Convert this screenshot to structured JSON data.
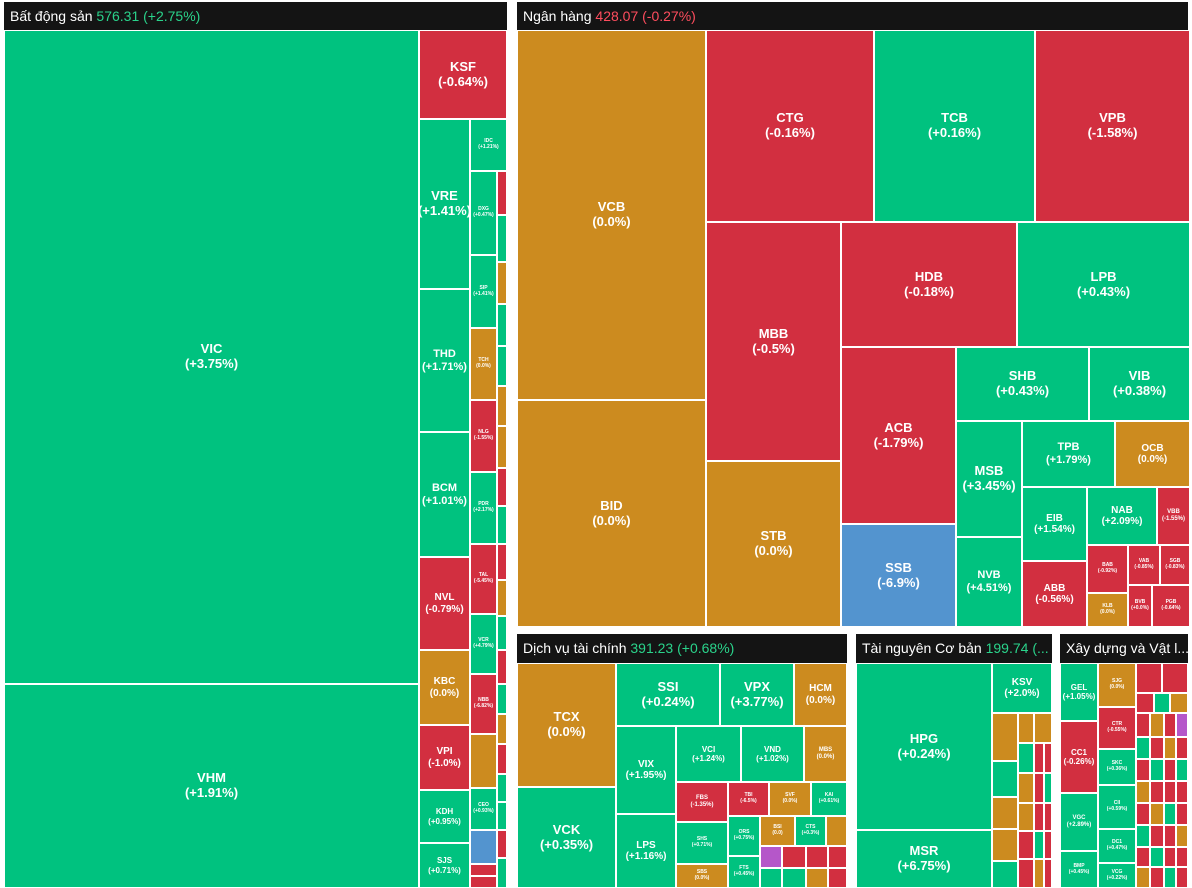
{
  "sectors": {
    "real_estate": {
      "name": "Bất động sản",
      "value": "576.31",
      "change": "(+2.75%)"
    },
    "banking": {
      "name": "Ngân hàng",
      "value": "428.07",
      "change": "(-0.27%)"
    },
    "financial_services": {
      "name": "Dịch vụ tài chính",
      "value": "391.23",
      "change": "(+0.68%)"
    },
    "basic_resources": {
      "name": "Tài nguyên Cơ bản",
      "value": "199.74",
      "change": "(..."
    },
    "construction": {
      "name": "Xây dựng và Vật l..."
    }
  },
  "tiles": {
    "VIC": {
      "ticker": "VIC",
      "change": "(+3.75%)"
    },
    "VHM": {
      "ticker": "VHM",
      "change": "(+1.91%)"
    },
    "KSF": {
      "ticker": "KSF",
      "change": "(-0.64%)"
    },
    "VRE": {
      "ticker": "VRE",
      "change": "(+1.41%)"
    },
    "THD": {
      "ticker": "THD",
      "change": "(+1.71%)"
    },
    "BCM": {
      "ticker": "BCM",
      "change": "(+1.01%)"
    },
    "NVL": {
      "ticker": "NVL",
      "change": "(-0.79%)"
    },
    "KBC": {
      "ticker": "KBC",
      "change": "(0.0%)"
    },
    "VPI": {
      "ticker": "VPI",
      "change": "(-1.0%)"
    },
    "KDH": {
      "ticker": "KDH",
      "change": "(+0.95%)"
    },
    "SJS": {
      "ticker": "SJS",
      "change": "(+0.71%)"
    },
    "IDC": {
      "ticker": "IDC",
      "change": "(+1.21%)"
    },
    "DXG": {
      "ticker": "DXG",
      "change": "(+0.47%)"
    },
    "SIP": {
      "ticker": "SIP",
      "change": "(+1.41%)"
    },
    "TCH": {
      "ticker": "TCH",
      "change": "(0.0%)"
    },
    "NLG": {
      "ticker": "NLG",
      "change": "(-1.55%)"
    },
    "PDR": {
      "ticker": "PDR",
      "change": "(+2.17%)"
    },
    "TAL": {
      "ticker": "TAL",
      "change": "(-5.45%)"
    },
    "VCR": {
      "ticker": "VCR",
      "change": "(+4.79%)"
    },
    "NBB": {
      "ticker": "NBB",
      "change": "(-6.82%)"
    },
    "CEO": {
      "ticker": "CEO",
      "change": "(+0.93%)"
    },
    "VCB": {
      "ticker": "VCB",
      "change": "(0.0%)"
    },
    "BID": {
      "ticker": "BID",
      "change": "(0.0%)"
    },
    "CTG": {
      "ticker": "CTG",
      "change": "(-0.16%)"
    },
    "TCB": {
      "ticker": "TCB",
      "change": "(+0.16%)"
    },
    "VPB": {
      "ticker": "VPB",
      "change": "(-1.58%)"
    },
    "MBB": {
      "ticker": "MBB",
      "change": "(-0.5%)"
    },
    "HDB": {
      "ticker": "HDB",
      "change": "(-0.18%)"
    },
    "LPB": {
      "ticker": "LPB",
      "change": "(+0.43%)"
    },
    "STB": {
      "ticker": "STB",
      "change": "(0.0%)"
    },
    "ACB": {
      "ticker": "ACB",
      "change": "(-1.79%)"
    },
    "SSB": {
      "ticker": "SSB",
      "change": "(-6.9%)"
    },
    "SHB": {
      "ticker": "SHB",
      "change": "(+0.43%)"
    },
    "VIB": {
      "ticker": "VIB",
      "change": "(+0.38%)"
    },
    "MSB": {
      "ticker": "MSB",
      "change": "(+3.45%)"
    },
    "TPB": {
      "ticker": "TPB",
      "change": "(+1.79%)"
    },
    "OCB": {
      "ticker": "OCB",
      "change": "(0.0%)"
    },
    "EIB": {
      "ticker": "EIB",
      "change": "(+1.54%)"
    },
    "NAB": {
      "ticker": "NAB",
      "change": "(+2.09%)"
    },
    "VBB": {
      "ticker": "VBB",
      "change": "(-1.55%)"
    },
    "NVB": {
      "ticker": "NVB",
      "change": "(+4.51%)"
    },
    "ABB": {
      "ticker": "ABB",
      "change": "(-0.56%)"
    },
    "BAB": {
      "ticker": "BAB",
      "change": "(-0.92%)"
    },
    "VAB": {
      "ticker": "VAB",
      "change": "(-0.85%)"
    },
    "SGB": {
      "ticker": "SGB",
      "change": "(-0.83%)"
    },
    "KLB": {
      "ticker": "KLB",
      "change": "(0.0%)"
    },
    "BVB": {
      "ticker": "BVB",
      "change": "(+0.0%)"
    },
    "PGB": {
      "ticker": "PGB",
      "change": "(-0.64%)"
    },
    "TCX": {
      "ticker": "TCX",
      "change": "(0.0%)"
    },
    "VCK": {
      "ticker": "VCK",
      "change": "(+0.35%)"
    },
    "SSI": {
      "ticker": "SSI",
      "change": "(+0.24%)"
    },
    "VPX": {
      "ticker": "VPX",
      "change": "(+3.77%)"
    },
    "HCM": {
      "ticker": "HCM",
      "change": "(0.0%)"
    },
    "VIX": {
      "ticker": "VIX",
      "change": "(+1.95%)"
    },
    "VCI": {
      "ticker": "VCI",
      "change": "(+1.24%)"
    },
    "VND": {
      "ticker": "VND",
      "change": "(+1.02%)"
    },
    "MBS": {
      "ticker": "MBS",
      "change": "(0.0%)"
    },
    "LPS": {
      "ticker": "LPS",
      "change": "(+1.16%)"
    },
    "FBS": {
      "ticker": "FBS",
      "change": "(-1.35%)"
    },
    "TBI": {
      "ticker": "TBI",
      "change": "(-6.5%)"
    },
    "SVF": {
      "ticker": "SVF",
      "change": "(0.0%)"
    },
    "KAI": {
      "ticker": "KAI",
      "change": "(+0.61%)"
    },
    "SHS": {
      "ticker": "SHS",
      "change": "(+0.71%)"
    },
    "ORS": {
      "ticker": "ORS",
      "change": "(+0.75%)"
    },
    "BSI": {
      "ticker": "BSI",
      "change": "(0.0)"
    },
    "CTS": {
      "ticker": "CTS",
      "change": "(+0.3%)"
    },
    "SBS": {
      "ticker": "SBS",
      "change": "(0.0%)"
    },
    "FTS": {
      "ticker": "FTS",
      "change": "(+0.45%)"
    },
    "HPG": {
      "ticker": "HPG",
      "change": "(+0.24%)"
    },
    "KSV": {
      "ticker": "KSV",
      "change": "(+2.0%)"
    },
    "MSR": {
      "ticker": "MSR",
      "change": "(+6.75%)"
    },
    "GEL": {
      "ticker": "GEL",
      "change": "(+1.05%)"
    },
    "SJG": {
      "ticker": "SJG",
      "change": "(0.0%)"
    },
    "CTR": {
      "ticker": "CTR",
      "change": "(-0.55%)"
    },
    "CC1": {
      "ticker": "CC1",
      "change": "(-0.26%)"
    },
    "SKC": {
      "ticker": "SKC",
      "change": "(+0.36%)"
    },
    "VGC": {
      "ticker": "VGC",
      "change": "(+2.89%)"
    },
    "CII": {
      "ticker": "CII",
      "change": "(+0.59%)"
    },
    "DC1": {
      "ticker": "DC1",
      "change": "(+0.47%)"
    },
    "BMP": {
      "ticker": "BMP",
      "change": "(+0.45%)"
    },
    "VCG": {
      "ticker": "VCG",
      "change": "(+0.22%)"
    }
  },
  "colors": {
    "up": "#00c27f",
    "down": "#d22f40",
    "flat": "#cc8b1f",
    "floor": "#5394cf",
    "ceiling": "#b557c9",
    "header_bg": "#141414"
  }
}
